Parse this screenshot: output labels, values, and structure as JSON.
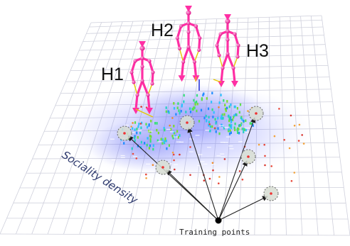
{
  "labels": {
    "h1": "H1",
    "h2": "H2",
    "h3": "H3",
    "density": "Sociality density",
    "training": "Training points"
  },
  "colors": {
    "grid": "#c9c9d6",
    "density": "#5d67ff",
    "skeleton": "#ff2fa4",
    "arrow": "#222222",
    "circle_fill": "#d7ddd2"
  },
  "icons": {
    "figure_joint": "pink-sphere-icon",
    "training_target": "dashed-circle-icon"
  }
}
